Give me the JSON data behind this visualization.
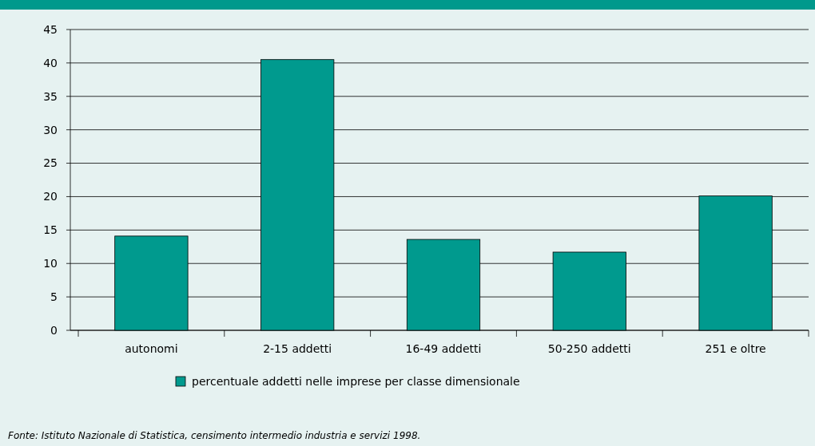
{
  "chart_data": {
    "type": "bar",
    "categories": [
      "autonomi",
      "2-15 addetti",
      "16-49 addetti",
      "50-250 addetti",
      "251 e oltre"
    ],
    "series": [
      {
        "name": "percentuale addetti nelle imprese per classe dimensionale",
        "color": "#009a8e",
        "values": [
          14.1,
          40.5,
          13.6,
          11.7,
          20.1
        ]
      }
    ],
    "ylim": [
      0,
      45
    ],
    "yticks": [
      0,
      5,
      10,
      15,
      20,
      25,
      30,
      35,
      40,
      45
    ],
    "grid": "y",
    "legend": "bottom",
    "annotations": [
      "Fonte: Istituto Nazionale di Statistica, censimento intermedio industria e servizi 1998."
    ]
  }
}
